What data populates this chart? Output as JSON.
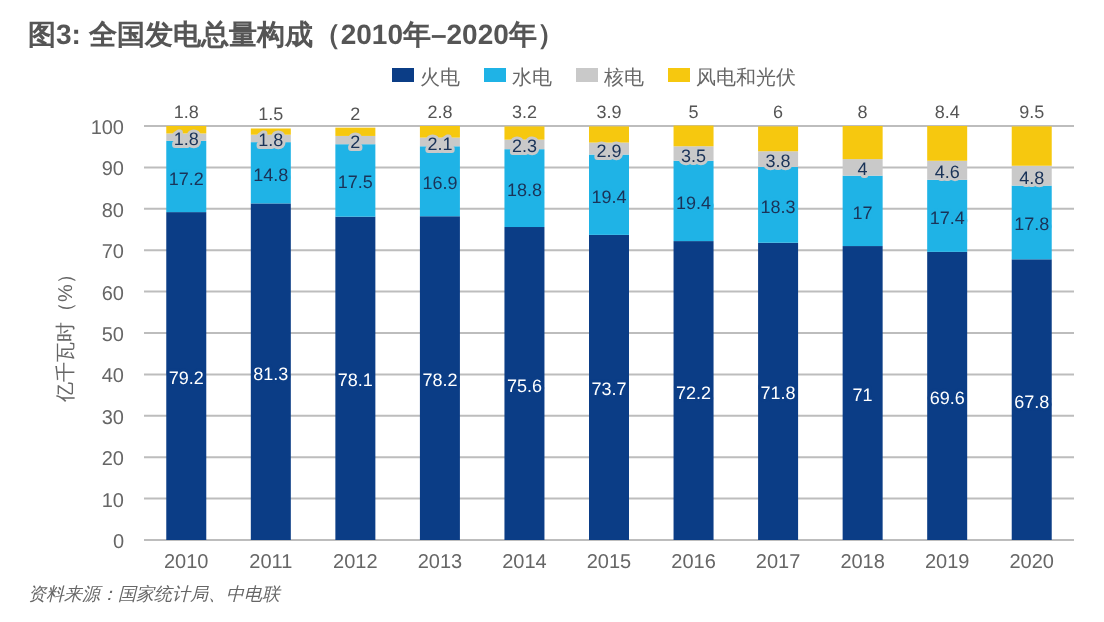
{
  "chart_data": {
    "type": "bar",
    "stacked": true,
    "title": "图3: 全国发电总量构成（2010年–2020年）",
    "ylabel": "亿千瓦时（%）",
    "categories": [
      "2010",
      "2011",
      "2012",
      "2013",
      "2014",
      "2015",
      "2016",
      "2017",
      "2018",
      "2019",
      "2020"
    ],
    "series": [
      {
        "name": "火电",
        "color": "#0b3d86",
        "values": [
          79.2,
          81.3,
          78.1,
          78.2,
          75.6,
          73.7,
          72.2,
          71.8,
          71,
          69.6,
          67.8
        ]
      },
      {
        "name": "水电",
        "color": "#1fb3e6",
        "values": [
          17.2,
          14.8,
          17.5,
          16.9,
          18.8,
          19.4,
          19.4,
          18.3,
          17,
          17.4,
          17.8
        ]
      },
      {
        "name": "核电",
        "color": "#c9c9c9",
        "values": [
          1.8,
          1.8,
          2,
          2.1,
          2.3,
          2.9,
          3.5,
          3.8,
          4,
          4.6,
          4.8
        ]
      },
      {
        "name": "风电和光伏",
        "color": "#f6c80f",
        "values": [
          1.8,
          1.5,
          2,
          2.8,
          3.2,
          3.9,
          5,
          6,
          8,
          8.4,
          9.5
        ]
      }
    ],
    "ylim": [
      0,
      100
    ],
    "yticks": [
      0,
      10,
      20,
      30,
      40,
      50,
      60,
      70,
      80,
      90,
      100
    ],
    "grid": "y",
    "legend": "top",
    "data_labels": true,
    "annotations": [
      "资料来源：国家统计局、中电联"
    ]
  }
}
